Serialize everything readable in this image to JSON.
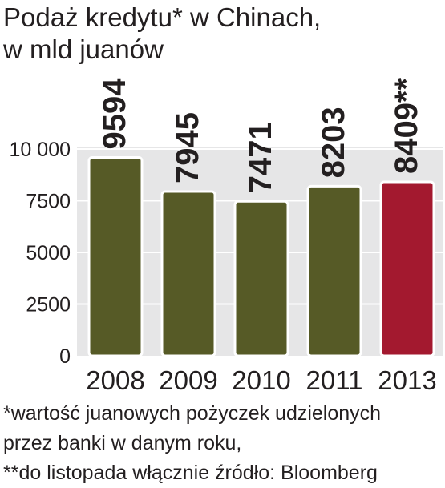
{
  "title": {
    "line1": "Podaż kredytu* w Chinach,",
    "line2": "w mld juanów"
  },
  "chart_data": {
    "type": "bar",
    "categories": [
      "2008",
      "2009",
      "2010",
      "2011",
      "2013"
    ],
    "values": [
      9594,
      7945,
      7471,
      8203,
      8409
    ],
    "value_labels": [
      "9594",
      "7945",
      "7471",
      "8203",
      "8409**"
    ],
    "highlight_index": 4,
    "ylim": [
      0,
      10000
    ],
    "yticks": [
      0,
      2500,
      5000,
      7500,
      10000
    ],
    "ytick_labels": [
      "0",
      "2500",
      "5000",
      "7500",
      "10 000"
    ],
    "grid": true,
    "colors": {
      "bar": "#565a26",
      "bar_highlight": "#a3192f",
      "plot_background": "#e6e6e7",
      "gridline": "#ffffff",
      "text": "#231f20"
    }
  },
  "notes": {
    "line1": "*wartość juanowych pożyczek udzielonych",
    "line2": "przez banki w danym roku,",
    "line3": "**do listopada włącznie źródło: Bloomberg"
  }
}
